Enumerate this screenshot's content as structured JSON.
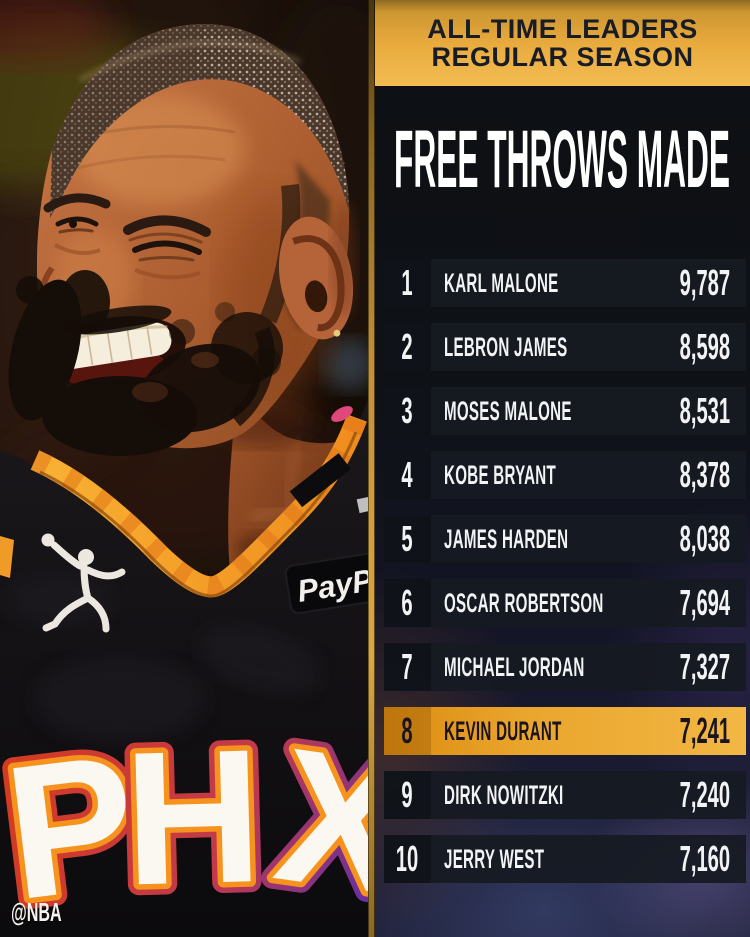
{
  "banner": {
    "line1": "ALL-TIME LEADERS",
    "line2": "REGULAR SEASON"
  },
  "title": "FREE THROWS MADE",
  "watermark": "@NBA",
  "photo": {
    "jersey_letters": [
      "P",
      "H",
      "X"
    ],
    "sponsor_text": "PayP"
  },
  "list": {
    "rows": [
      {
        "rank": "1",
        "name": "KARL MALONE",
        "value": "9,787",
        "highlight": false
      },
      {
        "rank": "2",
        "name": "LEBRON JAMES",
        "value": "8,598",
        "highlight": false
      },
      {
        "rank": "3",
        "name": "MOSES MALONE",
        "value": "8,531",
        "highlight": false
      },
      {
        "rank": "4",
        "name": "KOBE BRYANT",
        "value": "8,378",
        "highlight": false
      },
      {
        "rank": "5",
        "name": "JAMES HARDEN",
        "value": "8,038",
        "highlight": false
      },
      {
        "rank": "6",
        "name": "OSCAR ROBERTSON",
        "value": "7,694",
        "highlight": false
      },
      {
        "rank": "7",
        "name": "MICHAEL JORDAN",
        "value": "7,327",
        "highlight": false
      },
      {
        "rank": "8",
        "name": "KEVIN DURANT",
        "value": "7,241",
        "highlight": true
      },
      {
        "rank": "9",
        "name": "DIRK NOWITZKI",
        "value": "7,240",
        "highlight": false
      },
      {
        "rank": "10",
        "name": "JERRY WEST",
        "value": "7,160",
        "highlight": false
      }
    ]
  },
  "chart_data": {
    "type": "table",
    "title": "FREE THROWS MADE",
    "subtitle": "ALL-TIME LEADERS REGULAR SEASON",
    "columns": [
      "rank",
      "player",
      "free_throws_made"
    ],
    "rows": [
      [
        1,
        "KARL MALONE",
        9787
      ],
      [
        2,
        "LEBRON JAMES",
        8598
      ],
      [
        3,
        "MOSES MALONE",
        8531
      ],
      [
        4,
        "KOBE BRYANT",
        8378
      ],
      [
        5,
        "JAMES HARDEN",
        8038
      ],
      [
        6,
        "OSCAR ROBERTSON",
        7694
      ],
      [
        7,
        "MICHAEL JORDAN",
        7327
      ],
      [
        8,
        "KEVIN DURANT",
        7241
      ],
      [
        9,
        "DIRK NOWITZKI",
        7240
      ],
      [
        10,
        "JERRY WEST",
        7160
      ]
    ],
    "highlight_rank": 8,
    "highlighted_player": "KEVIN DURANT"
  },
  "colors": {
    "banner_gold": "#e9ab3e",
    "highlight_gradient_left": "#db8a0f",
    "highlight_gradient_right": "#f2b744",
    "row_background": "#161b21",
    "panel_background": "#0e1116",
    "text_light": "#f2f3f5",
    "text_dark": "#181c27",
    "jersey_trim_orange": "#f49d26"
  }
}
